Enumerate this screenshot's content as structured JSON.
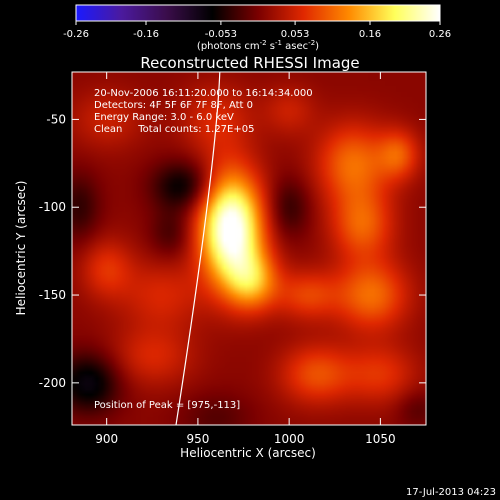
{
  "chart_data": {
    "type": "heatmap",
    "title": "Reconstructed RHESSI Image",
    "xlabel": "Heliocentric X (arcsec)",
    "ylabel": "Heliocentric Y (arcsec)",
    "xlim": [
      881,
      1075
    ],
    "ylim": [
      -224,
      -23
    ],
    "x_ticks": [
      900,
      950,
      1000,
      1050
    ],
    "y_ticks": [
      -50,
      -100,
      -150,
      -200
    ],
    "colorbar": {
      "ticks": [
        "-0.26",
        "-0.16",
        "-0.053",
        "0.053",
        "0.16",
        "0.26"
      ],
      "range": [
        -0.26,
        0.26
      ],
      "unit_label": "(photons cm^-2 s^-1 asec^-2)",
      "colors": [
        "#1a1aff",
        "#4b1a9e",
        "#3a0d4a",
        "#000000",
        "#7a0000",
        "#e02800",
        "#ff8a00",
        "#ffff5a",
        "#ffffff"
      ]
    },
    "annotations": [
      "20-Nov-2006 16:11:20.000 to 16:14:34.000",
      "Detectors: 4F 5F 6F 7F 8F, Att 0",
      "Energy Range: 3.0 - 6.0 keV",
      "Clean     Total counts: 1.27E+05"
    ],
    "peak_label": "Position of Peak = [975,-113]",
    "peak": {
      "x": 975,
      "y": -113
    },
    "blobs": [
      {
        "x": 968,
        "y": -112,
        "sx": 12,
        "sy": 22,
        "v": 0.27
      },
      {
        "x": 980,
        "y": -142,
        "sx": 10,
        "sy": 12,
        "v": 0.12
      },
      {
        "x": 1035,
        "y": -75,
        "sx": 14,
        "sy": 16,
        "v": 0.1
      },
      {
        "x": 1060,
        "y": -70,
        "sx": 8,
        "sy": 10,
        "v": 0.08
      },
      {
        "x": 1040,
        "y": -110,
        "sx": 12,
        "sy": 14,
        "v": 0.09
      },
      {
        "x": 1045,
        "y": -150,
        "sx": 14,
        "sy": 14,
        "v": 0.1
      },
      {
        "x": 1010,
        "y": -150,
        "sx": 12,
        "sy": 10,
        "v": 0.07
      },
      {
        "x": 1015,
        "y": -195,
        "sx": 14,
        "sy": 12,
        "v": 0.08
      },
      {
        "x": 1050,
        "y": -195,
        "sx": 14,
        "sy": 12,
        "v": 0.06
      },
      {
        "x": 930,
        "y": -150,
        "sx": 16,
        "sy": 14,
        "v": 0.05
      },
      {
        "x": 925,
        "y": -185,
        "sx": 16,
        "sy": 12,
        "v": 0.05
      },
      {
        "x": 900,
        "y": -135,
        "sx": 10,
        "sy": 12,
        "v": 0.06
      },
      {
        "x": 935,
        "y": -115,
        "sx": 8,
        "sy": 10,
        "v": -0.04
      },
      {
        "x": 900,
        "y": -50,
        "sx": 14,
        "sy": 12,
        "v": 0.04
      },
      {
        "x": 960,
        "y": -50,
        "sx": 14,
        "sy": 14,
        "v": 0.05
      },
      {
        "x": 1000,
        "y": -45,
        "sx": 10,
        "sy": 10,
        "v": 0.04
      },
      {
        "x": 1000,
        "y": -100,
        "sx": 8,
        "sy": 12,
        "v": -0.05
      },
      {
        "x": 942,
        "y": -88,
        "sx": 12,
        "sy": 10,
        "v": -0.08
      },
      {
        "x": 890,
        "y": -200,
        "sx": 12,
        "sy": 12,
        "v": -0.09
      },
      {
        "x": 885,
        "y": -100,
        "sx": 8,
        "sy": 14,
        "v": -0.05
      },
      {
        "x": 960,
        "y": -220,
        "sx": 14,
        "sy": 10,
        "v": -0.03
      },
      {
        "x": 1070,
        "y": -215,
        "sx": 8,
        "sy": 8,
        "v": -0.03
      }
    ],
    "background": 0.01,
    "limb_curve": [
      {
        "x": 962,
        "y": -23
      },
      {
        "x": 955,
        "y": -100
      },
      {
        "x": 938,
        "y": -224
      }
    ]
  },
  "footer": {
    "date": "17-Jul-2013 04:23"
  }
}
